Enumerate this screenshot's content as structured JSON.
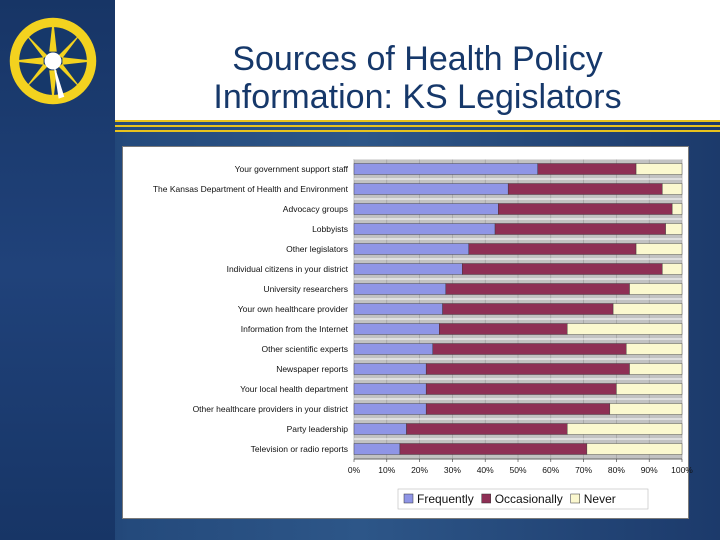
{
  "slide": {
    "title_line1": "Sources of Health Policy",
    "title_line2": "Information: KS Legislators"
  },
  "logo": {
    "icon": "starburst-compass-logo"
  },
  "colors": {
    "frequently": "#8f95e6",
    "occasionally": "#8e2f55",
    "never": "#fbf8cf",
    "plot_bg": "#c2c2c2",
    "title": "#16386a"
  },
  "chart_data": {
    "type": "bar",
    "orientation": "horizontal",
    "stacked": true,
    "categories": [
      "Your government support staff",
      "The Kansas Department of Health and Environment",
      "Advocacy groups",
      "Lobbyists",
      "Other legislators",
      "Individual citizens in your district",
      "University researchers",
      "Your own healthcare provider",
      "Information from the Internet",
      "Other scientific experts",
      "Newspaper reports",
      "Your local health department",
      "Other healthcare providers in your district",
      "Party leadership",
      "Television or radio reports"
    ],
    "series": [
      {
        "name": "Frequently",
        "values": [
          56,
          47,
          44,
          43,
          35,
          33,
          28,
          27,
          26,
          24,
          22,
          22,
          22,
          16,
          14
        ]
      },
      {
        "name": "Occasionally",
        "values": [
          30,
          47,
          53,
          52,
          51,
          61,
          56,
          52,
          39,
          59,
          62,
          58,
          56,
          49,
          57
        ]
      },
      {
        "name": "Never",
        "values": [
          14,
          6,
          3,
          5,
          14,
          6,
          16,
          21,
          35,
          17,
          16,
          20,
          22,
          35,
          29
        ]
      }
    ],
    "xlim": [
      0,
      100
    ],
    "xticks": [
      "0%",
      "10%",
      "20%",
      "30%",
      "40%",
      "50%",
      "60%",
      "70%",
      "80%",
      "90%",
      "100%"
    ],
    "legend": [
      "Frequently",
      "Occasionally",
      "Never"
    ],
    "legend_position": "bottom",
    "grid": true
  }
}
